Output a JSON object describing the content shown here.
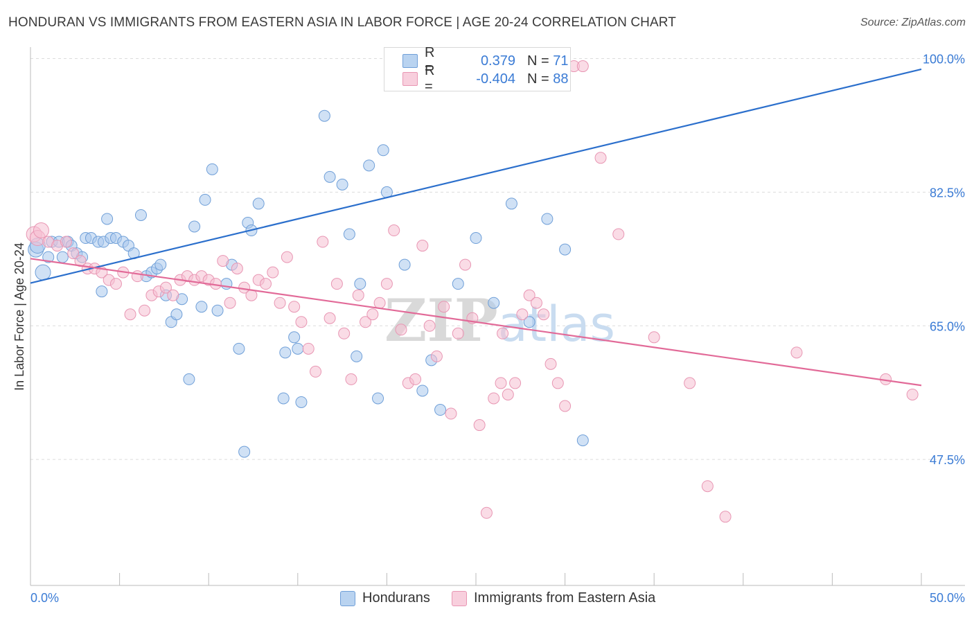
{
  "title": "HONDURAN VS IMMIGRANTS FROM EASTERN ASIA IN LABOR FORCE | AGE 20-24 CORRELATION CHART",
  "source": "Source: ZipAtlas.com",
  "watermark": "ZIPatlas",
  "legend": {
    "rows": [
      {
        "r_label": "R =",
        "r_value": "0.379",
        "n_label": "N =",
        "n_value": "71"
      },
      {
        "r_label": "R =",
        "r_value": "-0.404",
        "n_label": "N =",
        "n_value": "88"
      }
    ]
  },
  "colors": {
    "blue_fill": "#a9c8ec",
    "blue_stroke": "#6f9fd8",
    "blue_line": "#2b6fcc",
    "pink_fill": "#f6c0d2",
    "pink_stroke": "#e896b3",
    "pink_line": "#e26a98",
    "value_text": "#3a7bd5",
    "grid": "#dcdcdc"
  },
  "chart_data": {
    "type": "scatter",
    "title": "HONDURAN VS IMMIGRANTS FROM EASTERN ASIA IN LABOR FORCE | AGE 20-24 CORRELATION CHART",
    "xlabel": "",
    "ylabel": "In Labor Force | Age 20-24",
    "xlim": [
      0,
      50
    ],
    "ylim": [
      31,
      101.5
    ],
    "x_tick_labels": [
      "0.0%",
      "50.0%"
    ],
    "y_ticks": [
      47.5,
      65.0,
      82.5,
      100.0
    ],
    "y_tick_labels": [
      "47.5%",
      "65.0%",
      "82.5%",
      "100.0%"
    ],
    "grid": "horizontal dashed",
    "legend_position": "top-center",
    "series": [
      {
        "name": "Hondurans",
        "r": 0.379,
        "n": 71,
        "trend": {
          "x": [
            0,
            50
          ],
          "y": [
            70.6,
            98.6
          ]
        },
        "points": [
          [
            0.3,
            75.0
          ],
          [
            0.4,
            75.5
          ],
          [
            0.7,
            72.0
          ],
          [
            1.0,
            74.0
          ],
          [
            1.2,
            76.0
          ],
          [
            1.6,
            76.0
          ],
          [
            1.8,
            74.0
          ],
          [
            2.1,
            76.0
          ],
          [
            2.3,
            75.5
          ],
          [
            2.6,
            74.5
          ],
          [
            2.9,
            74.0
          ],
          [
            3.1,
            76.5
          ],
          [
            3.4,
            76.5
          ],
          [
            3.8,
            76.0
          ],
          [
            4.1,
            76.0
          ],
          [
            4.3,
            79.0
          ],
          [
            4.5,
            76.5
          ],
          [
            4.8,
            76.5
          ],
          [
            5.2,
            76.0
          ],
          [
            5.5,
            75.5
          ],
          [
            5.8,
            74.5
          ],
          [
            6.2,
            79.5
          ],
          [
            6.5,
            71.5
          ],
          [
            6.8,
            72.0
          ],
          [
            7.1,
            72.5
          ],
          [
            7.3,
            73.0
          ],
          [
            7.6,
            69.0
          ],
          [
            7.9,
            65.5
          ],
          [
            8.2,
            66.5
          ],
          [
            8.9,
            58.0
          ],
          [
            9.6,
            67.5
          ],
          [
            9.8,
            81.5
          ],
          [
            10.2,
            85.5
          ],
          [
            11.0,
            70.5
          ],
          [
            11.3,
            73.0
          ],
          [
            11.7,
            62.0
          ],
          [
            12.2,
            78.5
          ],
          [
            12.4,
            77.5
          ],
          [
            12.8,
            81.0
          ],
          [
            14.2,
            55.5
          ],
          [
            14.3,
            61.5
          ],
          [
            14.8,
            63.5
          ],
          [
            15.0,
            62.0
          ],
          [
            15.2,
            55.0
          ],
          [
            16.5,
            92.5
          ],
          [
            16.8,
            84.5
          ],
          [
            17.5,
            83.5
          ],
          [
            17.9,
            77.0
          ],
          [
            18.3,
            61.0
          ],
          [
            18.5,
            70.5
          ],
          [
            19.0,
            86.0
          ],
          [
            19.5,
            55.5
          ],
          [
            19.8,
            88.0
          ],
          [
            20.0,
            82.5
          ],
          [
            21.0,
            73.0
          ],
          [
            22.0,
            56.5
          ],
          [
            22.5,
            60.5
          ],
          [
            23.0,
            54.0
          ],
          [
            24.0,
            70.5
          ],
          [
            25.0,
            76.5
          ],
          [
            26.0,
            68.0
          ],
          [
            27.0,
            81.0
          ],
          [
            28.0,
            65.5
          ],
          [
            29.0,
            79.0
          ],
          [
            30.0,
            75.0
          ],
          [
            31.0,
            50.0
          ],
          [
            8.5,
            68.5
          ],
          [
            9.2,
            78.0
          ],
          [
            10.5,
            67.0
          ],
          [
            4.0,
            69.5
          ],
          [
            12.0,
            48.5
          ]
        ]
      },
      {
        "name": "Immigrants from Eastern Asia",
        "r": -0.404,
        "n": 88,
        "trend": {
          "x": [
            0,
            50
          ],
          "y": [
            73.8,
            57.2
          ]
        },
        "points": [
          [
            0.2,
            77.0
          ],
          [
            0.4,
            76.5
          ],
          [
            0.6,
            77.5
          ],
          [
            1.0,
            76.0
          ],
          [
            1.5,
            75.5
          ],
          [
            2.0,
            76.0
          ],
          [
            2.4,
            74.5
          ],
          [
            2.8,
            73.5
          ],
          [
            3.2,
            72.5
          ],
          [
            3.6,
            72.5
          ],
          [
            4.0,
            72.0
          ],
          [
            4.4,
            71.0
          ],
          [
            4.8,
            70.5
          ],
          [
            5.2,
            72.0
          ],
          [
            5.6,
            66.5
          ],
          [
            6.0,
            71.5
          ],
          [
            6.4,
            67.0
          ],
          [
            6.8,
            69.0
          ],
          [
            7.2,
            69.5
          ],
          [
            7.6,
            70.0
          ],
          [
            8.0,
            69.0
          ],
          [
            8.4,
            71.0
          ],
          [
            8.8,
            71.5
          ],
          [
            9.2,
            71.0
          ],
          [
            9.6,
            71.5
          ],
          [
            10.0,
            71.0
          ],
          [
            10.4,
            70.5
          ],
          [
            10.8,
            73.5
          ],
          [
            11.2,
            68.0
          ],
          [
            11.6,
            72.5
          ],
          [
            12.0,
            70.0
          ],
          [
            12.4,
            69.0
          ],
          [
            12.8,
            71.0
          ],
          [
            13.2,
            70.5
          ],
          [
            13.6,
            72.0
          ],
          [
            14.0,
            68.0
          ],
          [
            14.4,
            74.0
          ],
          [
            14.8,
            67.5
          ],
          [
            15.2,
            65.5
          ],
          [
            15.6,
            62.0
          ],
          [
            16.0,
            59.0
          ],
          [
            16.4,
            76.0
          ],
          [
            16.8,
            66.0
          ],
          [
            17.2,
            70.5
          ],
          [
            17.6,
            64.0
          ],
          [
            18.0,
            58.0
          ],
          [
            18.4,
            69.0
          ],
          [
            18.8,
            65.5
          ],
          [
            19.2,
            66.5
          ],
          [
            19.6,
            68.0
          ],
          [
            20.0,
            70.5
          ],
          [
            20.4,
            77.5
          ],
          [
            20.8,
            64.5
          ],
          [
            21.2,
            57.5
          ],
          [
            21.6,
            58.0
          ],
          [
            22.0,
            75.5
          ],
          [
            22.4,
            65.0
          ],
          [
            22.8,
            61.0
          ],
          [
            23.2,
            67.5
          ],
          [
            23.6,
            53.5
          ],
          [
            24.0,
            64.0
          ],
          [
            24.4,
            73.0
          ],
          [
            24.8,
            66.0
          ],
          [
            25.2,
            52.0
          ],
          [
            25.6,
            40.5
          ],
          [
            26.0,
            55.5
          ],
          [
            26.4,
            57.5
          ],
          [
            26.8,
            56.0
          ],
          [
            27.2,
            57.5
          ],
          [
            27.6,
            66.5
          ],
          [
            28.0,
            69.0
          ],
          [
            28.4,
            68.0
          ],
          [
            28.8,
            66.5
          ],
          [
            29.2,
            60.0
          ],
          [
            29.6,
            57.5
          ],
          [
            30.0,
            54.5
          ],
          [
            30.5,
            99.0
          ],
          [
            31.0,
            99.0
          ],
          [
            32.0,
            87.0
          ],
          [
            33.0,
            77.0
          ],
          [
            35.0,
            63.5
          ],
          [
            37.0,
            57.5
          ],
          [
            38.0,
            44.0
          ],
          [
            39.0,
            40.0
          ],
          [
            43.0,
            61.5
          ],
          [
            48.0,
            58.0
          ],
          [
            49.5,
            56.0
          ],
          [
            26.5,
            64.0
          ]
        ]
      }
    ]
  },
  "axis": {
    "ylabel": "In Labor Force | Age 20-24",
    "x_left_label": "0.0%",
    "x_right_label": "50.0%"
  }
}
